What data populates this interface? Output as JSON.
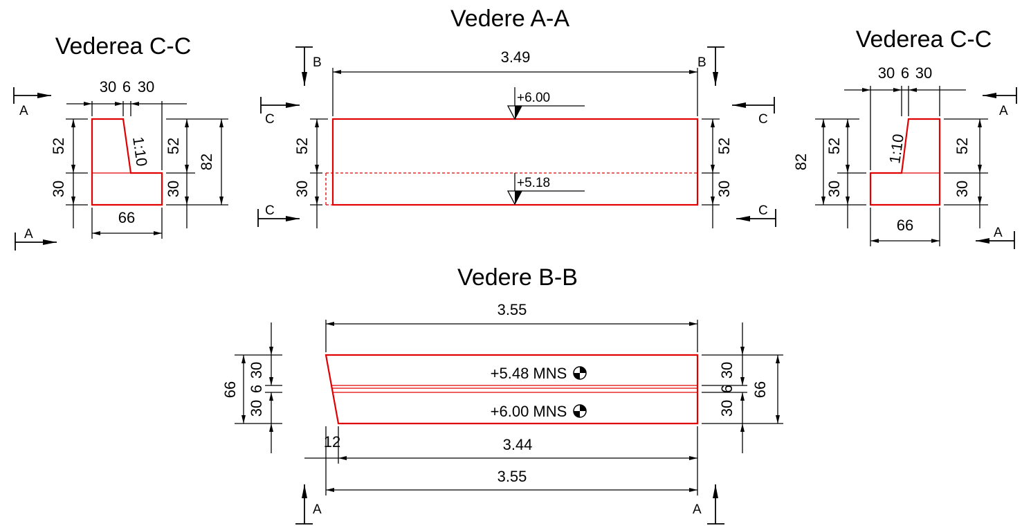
{
  "titles": {
    "left": "Vederea C-C",
    "center": "Vedere A-A",
    "right": "Vederea C-C",
    "bottom": "Vedere B-B"
  },
  "section_marks": {
    "a": "A",
    "b": "B",
    "c": "C"
  },
  "left_view": {
    "top_dims": [
      "30",
      "6",
      "30"
    ],
    "bottom_dim": "66",
    "left_dims": [
      "52",
      "30"
    ],
    "right_dims": [
      "52",
      "30"
    ],
    "overall_height": "82",
    "slope": "1:10"
  },
  "right_view": {
    "top_dims": [
      "30",
      "6",
      "30"
    ],
    "bottom_dim": "66",
    "left_dims": [
      "52",
      "30"
    ],
    "right_dims": [
      "52",
      "30"
    ],
    "overall_height": "82",
    "slope": "1:10"
  },
  "view_aa": {
    "length": "3.49",
    "left_dims": [
      "52",
      "30"
    ],
    "right_dims": [
      "52",
      "30"
    ],
    "elev_top": "+6.00",
    "elev_bottom": "+5.18"
  },
  "view_bb": {
    "top_length": "3.55",
    "inner_length": "3.44",
    "offset": "12",
    "bottom_length": "3.55",
    "side_dims": [
      "30",
      "6",
      "30"
    ],
    "overall_width": "66",
    "level_upper": "+5.48 MNS",
    "level_lower": "+6.00 MNS"
  }
}
